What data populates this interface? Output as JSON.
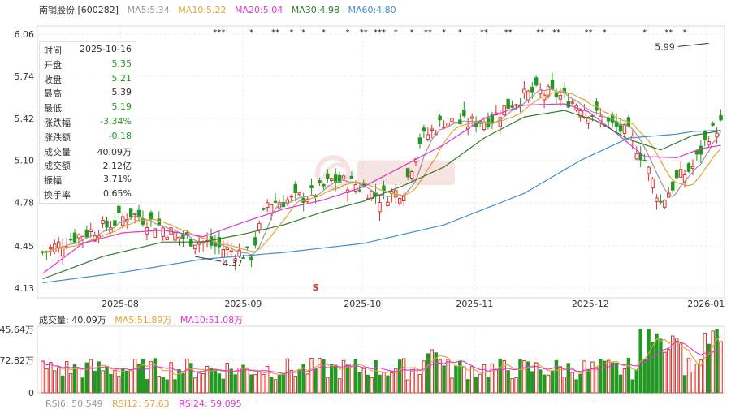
{
  "header": {
    "stock": "南钢股份 [600282]",
    "ma": [
      {
        "label": "MA5:5.34",
        "color": "#999999"
      },
      {
        "label": "MA10:5.22",
        "color": "#e2a535"
      },
      {
        "label": "MA20:5.04",
        "color": "#e134d6"
      },
      {
        "label": "MA30:4.98",
        "color": "#2f7d2f"
      },
      {
        "label": "MA60:4.80",
        "color": "#3f8fd4"
      }
    ]
  },
  "tooltip": {
    "rows": [
      {
        "k": "时间",
        "v": "2025-10-16",
        "c": "#333333"
      },
      {
        "k": "开盘",
        "v": "5.35",
        "c": "#229922"
      },
      {
        "k": "收盘",
        "v": "5.21",
        "c": "#229922"
      },
      {
        "k": "最高",
        "v": "5.39",
        "c": "#333333"
      },
      {
        "k": "最低",
        "v": "5.19",
        "c": "#229922"
      },
      {
        "k": "涨跌幅",
        "v": "-3.34%",
        "c": "#229922"
      },
      {
        "k": "涨跌额",
        "v": "-0.18",
        "c": "#229922"
      },
      {
        "k": "成交量",
        "v": "40.09万",
        "c": "#333333"
      },
      {
        "k": "成交额",
        "v": "2.12亿",
        "c": "#333333"
      },
      {
        "k": "振幅",
        "v": "3.71%",
        "c": "#333333"
      },
      {
        "k": "换手率",
        "v": "0.65%",
        "c": "#333333"
      }
    ]
  },
  "volume_legend": [
    {
      "label": "成交量: 40.09万",
      "color": "#333333"
    },
    {
      "label": "MA5:51.89万",
      "color": "#e2a535"
    },
    {
      "label": "MA10:51.08万",
      "color": "#e134d6"
    }
  ],
  "rsi_legend": [
    {
      "label": "RSI6: 50.549",
      "color": "#999999"
    },
    {
      "label": "RSI12: 57.63",
      "color": "#e2a535"
    },
    {
      "label": "RSI24: 59.095",
      "color": "#e134d6"
    }
  ],
  "chart_data": {
    "type": "candlestick",
    "y_ticks": [
      "6.06",
      "5.74",
      "5.42",
      "5.10",
      "4.78",
      "4.45",
      "4.13"
    ],
    "ylim": [
      4.13,
      6.06
    ],
    "x_ticks": [
      "2025-08",
      "2025-09",
      "2025-10",
      "2025-11",
      "2025-12",
      "2026-01"
    ],
    "annotations": [
      {
        "text": "4.37",
        "value": 4.37
      },
      {
        "text": "5.99",
        "value": 5.99
      }
    ],
    "marker": "S",
    "volume_y_ticks": [
      "45.64万",
      "72.82万",
      "0"
    ],
    "series": [
      {
        "name": "MA5",
        "color": "#999999"
      },
      {
        "name": "MA10",
        "color": "#e2a535"
      },
      {
        "name": "MA20",
        "color": "#e134d6"
      },
      {
        "name": "MA30",
        "color": "#2f7d2f"
      },
      {
        "name": "MA60",
        "color": "#3f8fd4"
      }
    ],
    "ma60_points": [
      [
        0,
        4.17
      ],
      [
        20,
        4.25
      ],
      [
        40,
        4.35
      ],
      [
        60,
        4.4
      ],
      [
        80,
        4.47
      ],
      [
        100,
        4.61
      ],
      [
        120,
        4.85
      ],
      [
        134,
        5.1
      ],
      [
        146,
        5.27
      ],
      [
        158,
        5.3
      ],
      [
        162,
        5.32
      ],
      [
        170,
        5.33
      ]
    ],
    "ma30_points": [
      [
        0,
        4.2
      ],
      [
        15,
        4.37
      ],
      [
        30,
        4.48
      ],
      [
        40,
        4.48
      ],
      [
        50,
        4.54
      ],
      [
        60,
        4.61
      ],
      [
        70,
        4.71
      ],
      [
        80,
        4.79
      ],
      [
        90,
        4.91
      ],
      [
        100,
        5.05
      ],
      [
        110,
        5.27
      ],
      [
        120,
        5.43
      ],
      [
        130,
        5.48
      ],
      [
        138,
        5.4
      ],
      [
        146,
        5.26
      ],
      [
        154,
        5.18
      ],
      [
        162,
        5.29
      ],
      [
        170,
        5.33
      ]
    ],
    "ma20_points": [
      [
        0,
        4.24
      ],
      [
        10,
        4.47
      ],
      [
        20,
        4.55
      ],
      [
        30,
        4.57
      ],
      [
        40,
        4.52
      ],
      [
        50,
        4.63
      ],
      [
        60,
        4.73
      ],
      [
        70,
        4.8
      ],
      [
        80,
        4.9
      ],
      [
        90,
        5.06
      ],
      [
        100,
        5.22
      ],
      [
        110,
        5.42
      ],
      [
        120,
        5.52
      ],
      [
        130,
        5.53
      ],
      [
        136,
        5.47
      ],
      [
        142,
        5.33
      ],
      [
        150,
        5.13
      ],
      [
        158,
        5.12
      ],
      [
        164,
        5.19
      ],
      [
        170,
        5.22
      ]
    ]
  }
}
